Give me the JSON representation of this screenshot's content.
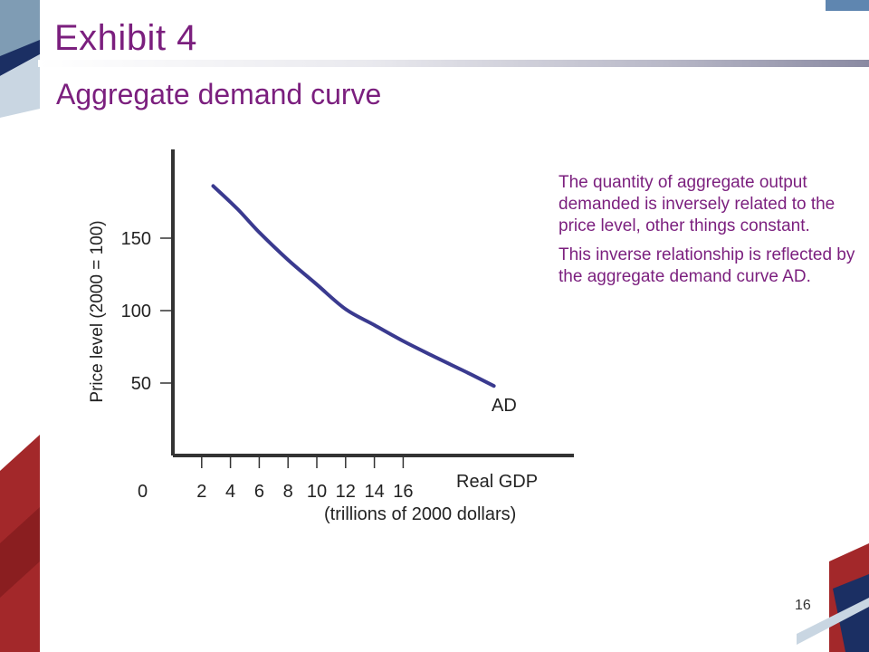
{
  "slide": {
    "title": "Exhibit 4",
    "subtitle": "Aggregate demand curve",
    "page_number": "16"
  },
  "explanation": [
    "The quantity of aggregate output demanded is inversely related to the price level, other things constant.",
    "This inverse relationship is reflected by the aggregate demand curve AD."
  ],
  "colors": {
    "title": "#7b1f7e",
    "curve": "#3a3a8f",
    "decor_red": "#a3282a",
    "decor_navy": "#1b2f63",
    "decor_steel": "#7f9cb4"
  },
  "chart_data": {
    "type": "line",
    "xlabel": "Real GDP",
    "xlabel_sub": "(trillions of 2000 dollars)",
    "ylabel": "Price level (2000 = 100)",
    "origin_label": "0",
    "x_ticks": [
      2,
      4,
      6,
      8,
      10,
      12,
      14,
      16
    ],
    "y_ticks": [
      50,
      100,
      150
    ],
    "xlim": [
      0,
      28
    ],
    "ylim": [
      0,
      210
    ],
    "grid": false,
    "series": [
      {
        "name": "AD",
        "x": [
          2.8,
          4.5,
          6,
          8,
          10,
          12,
          14,
          16,
          18,
          20.5,
          22.3
        ],
        "y": [
          186,
          170,
          154,
          135,
          118,
          101,
          90,
          79,
          69,
          57,
          48
        ]
      }
    ]
  }
}
